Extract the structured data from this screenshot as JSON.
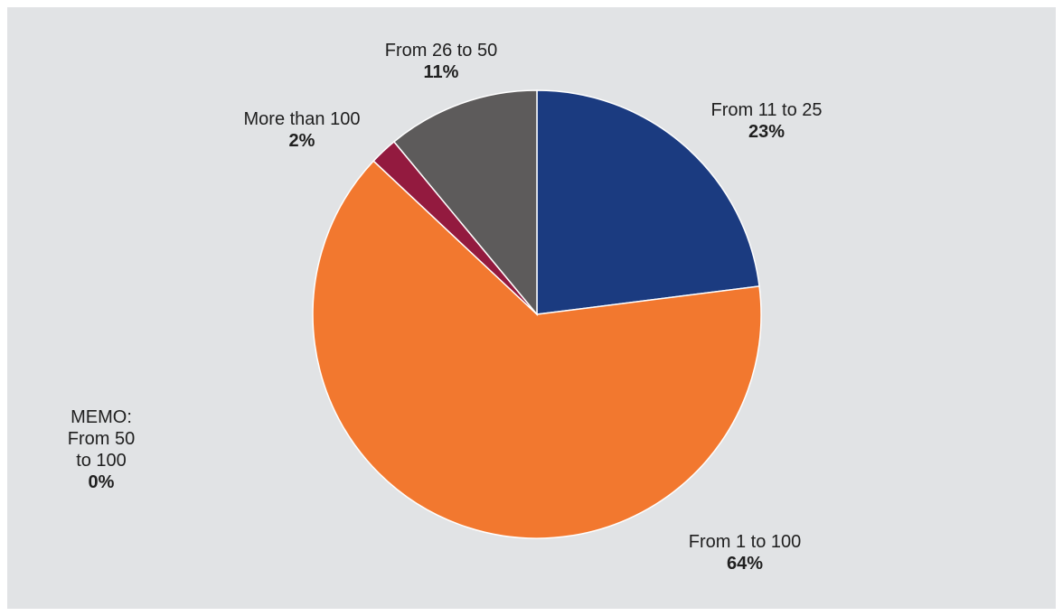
{
  "chart_data": {
    "type": "pie",
    "title": "",
    "slices": [
      {
        "label": "From 11 to 25",
        "value": 23,
        "display": "23%",
        "color": "#1b3b80"
      },
      {
        "label": "From 1 to 100",
        "value": 64,
        "display": "64%",
        "color": "#f2782f"
      },
      {
        "label": "MEMO:\nFrom 50\nto 100",
        "value": 0,
        "display": "0%",
        "color": "#f2782f"
      },
      {
        "label": "More than 100",
        "value": 2,
        "display": "2%",
        "color": "#931a3f"
      },
      {
        "label": "From 26 to 50",
        "value": 11,
        "display": "11%",
        "color": "#5d5b5b"
      }
    ],
    "start_angle_deg": 0,
    "direction": "clockwise",
    "legend": "none",
    "background": "#e1e3e5"
  }
}
